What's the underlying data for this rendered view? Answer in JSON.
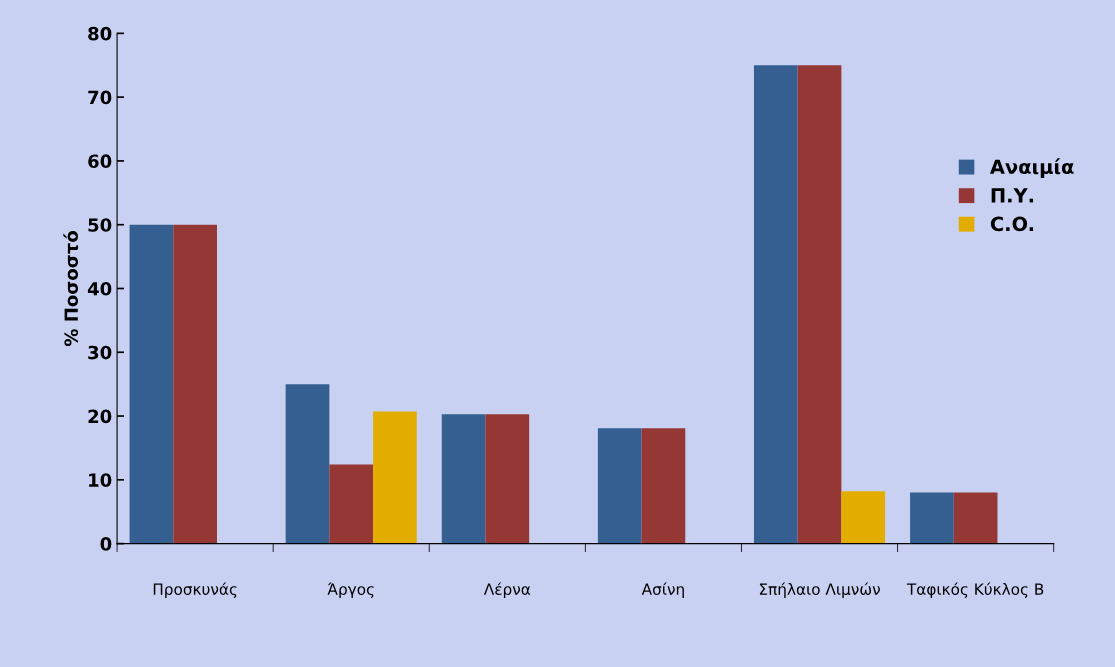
{
  "chart_data": {
    "type": "bar",
    "ylabel": "% Ποσοστό",
    "categories": [
      "Προσκυνάς",
      "Άργος",
      "Λέρνα",
      "Ασίνη",
      "Σπήλαιο Λιμνών",
      "Ταφικός Κύκλος Β"
    ],
    "series": [
      {
        "name": "Αναιμία",
        "color": "#355f91",
        "values": [
          50,
          25,
          20.3,
          18.1,
          75,
          8
        ]
      },
      {
        "name": "Π.Υ.",
        "color": "#953735",
        "values": [
          50,
          12.4,
          20.3,
          18.1,
          75,
          8
        ]
      },
      {
        "name": "C.O.",
        "color": "#e3ad00",
        "values": [
          null,
          20.7,
          null,
          null,
          8.2,
          null
        ]
      }
    ],
    "ylim": [
      0,
      80
    ],
    "yticks": [
      0,
      10,
      20,
      30,
      40,
      50,
      60,
      70,
      80
    ],
    "grid": false,
    "legend": "right"
  }
}
